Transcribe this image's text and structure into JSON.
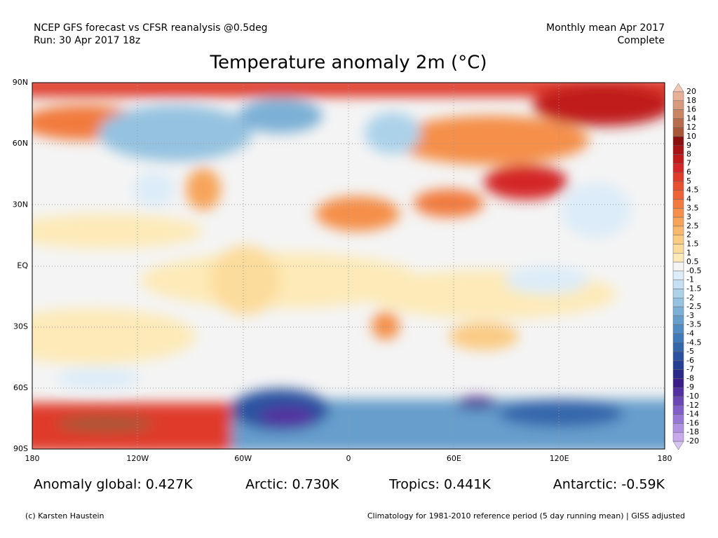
{
  "header": {
    "left": [
      "NCEP GFS forecast vs CFSR reanalysis @0.5deg",
      "Run: 30 Apr 2017 18z"
    ],
    "right": [
      "Monthly mean Apr 2017",
      "Complete"
    ]
  },
  "title": "Temperature anomaly 2m (°C)",
  "map": {
    "lat_labels": [
      "90N",
      "60N",
      "30N",
      "EQ",
      "30S",
      "60S",
      "90S"
    ],
    "lon_labels": [
      "180",
      "120W",
      "60W",
      "0",
      "60E",
      "120E",
      "180"
    ]
  },
  "colorbar": {
    "labels": [
      "20",
      "18",
      "16",
      "14",
      "12",
      "10",
      "9",
      "8",
      "7",
      "6",
      "5",
      "4.5",
      "4",
      "3.5",
      "3",
      "2.5",
      "2",
      "1.5",
      "1",
      "0.5",
      "-0.5",
      "-1",
      "-1.5",
      "-2",
      "-2.5",
      "-3",
      "-3.5",
      "-4",
      "-4.5",
      "-5",
      "-6",
      "-7",
      "-8",
      "-9",
      "-10",
      "-12",
      "-14",
      "-16",
      "-18",
      "-20"
    ],
    "colors": [
      "#f4c8b4",
      "#e8b096",
      "#d99a7c",
      "#c98462",
      "#b86e4c",
      "#a85838",
      "#8c1010",
      "#a81414",
      "#c01a1a",
      "#d42626",
      "#e03a2a",
      "#e85030",
      "#ee6436",
      "#f27a3e",
      "#f58f4a",
      "#f7a45a",
      "#f9b86e",
      "#fbcb84",
      "#fcdc9c",
      "#fdeab8",
      "#f4f4f4",
      "#dcecf8",
      "#c4e0f2",
      "#acd2ea",
      "#94c2e0",
      "#7cb0d6",
      "#669ecc",
      "#528cc2",
      "#407ab8",
      "#3466ac",
      "#2a52a0",
      "#243e94",
      "#2c2a88",
      "#3c1e8a",
      "#5430a0",
      "#6a48b6",
      "#8060c8",
      "#9878d6",
      "#b092e2",
      "#c6aaec",
      "#d8c4f2"
    ]
  },
  "stats": [
    "Anomaly global: 0.427K",
    "Arctic: 0.730K",
    "Tropics: 0.441K",
    "Antarctic: -0.59K"
  ],
  "footer": {
    "left": "(c) Karsten Haustein",
    "right": "Climatology for 1981-2010 reference period (5 day running mean) | GISS adjusted"
  }
}
